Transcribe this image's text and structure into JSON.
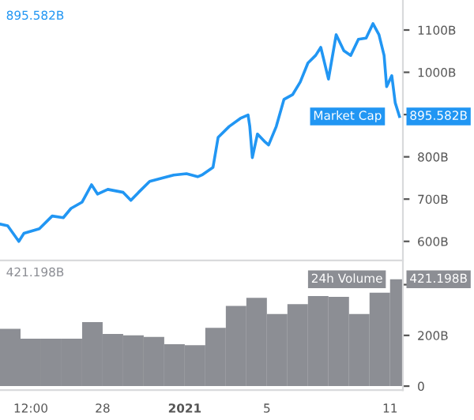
{
  "chart_data": [
    {
      "type": "line",
      "annotations": [
        "895.582B",
        {
          "text": "895.582B",
          "x": "2021-01-11T11:00",
          "y": 895.582
        }
      ],
      "xlim": [
        "2020-12-23T00:00",
        "2021-01-11T15:00"
      ],
      "ylim": [
        555,
        1171
      ],
      "yticks": [
        {
          "value": 600,
          "label": "600B"
        },
        {
          "value": 700,
          "label": "700B"
        },
        {
          "value": 800,
          "label": "800B"
        },
        {
          "value": 900,
          "label": null
        },
        {
          "value": 1000,
          "label": "1000B"
        },
        {
          "value": 1100,
          "label": "1100B"
        }
      ],
      "tick_labels": "y",
      "series": [
        {
          "name": "Market Cap",
          "color": "#2196f3",
          "x": [
            "2020-12-23T00:00",
            "2020-12-23T09:00",
            "2020-12-23T22:00",
            "2020-12-24T04:00",
            "2020-12-24T22:00",
            "2020-12-25T13:00",
            "2020-12-26T02:00",
            "2020-12-26T11:00",
            "2020-12-27T00:00",
            "2020-12-27T11:00",
            "2020-12-27T18:00",
            "2020-12-28T06:00",
            "2020-12-29T00:00",
            "2020-12-29T09:00",
            "2020-12-29T18:00",
            "2020-12-30T07:00",
            "2020-12-30T20:00",
            "2020-12-31T11:00",
            "2021-01-01T02:00",
            "2021-01-01T15:00",
            "2021-01-01T20:00",
            "2021-01-02T09:00",
            "2021-01-02T15:00",
            "2021-01-03T04:00",
            "2021-01-03T17:00",
            "2021-01-04T02:00",
            "2021-01-04T04:00",
            "2021-01-04T07:00",
            "2021-01-04T13:00",
            "2021-01-04T22:00",
            "2021-01-05T02:00",
            "2021-01-05T11:00",
            "2021-01-05T20:00",
            "2021-01-06T06:00",
            "2021-01-06T15:00",
            "2021-01-07T00:00",
            "2021-01-07T09:00",
            "2021-01-07T15:00",
            "2021-01-08T00:00",
            "2021-01-08T09:00",
            "2021-01-08T18:00",
            "2021-01-09T02:00",
            "2021-01-09T11:00",
            "2021-01-09T20:00",
            "2021-01-10T04:00",
            "2021-01-10T11:00",
            "2021-01-10T17:00",
            "2021-01-10T20:00",
            "2021-01-11T02:00",
            "2021-01-11T06:00",
            "2021-01-11T11:00"
          ],
          "values": [
            641,
            637,
            600,
            619,
            630,
            660,
            656,
            678,
            693,
            734,
            712,
            723,
            716,
            697,
            716,
            742,
            749,
            757,
            760,
            753,
            757,
            775,
            846,
            872,
            891,
            899,
            872,
            798,
            854,
            835,
            828,
            872,
            936,
            947,
            977,
            1022,
            1040,
            1059,
            984,
            1089,
            1051,
            1040,
            1078,
            1081,
            1115,
            1089,
            1040,
            966,
            992,
            928,
            895.582
          ]
        }
      ]
    },
    {
      "type": "bar",
      "annotations": [
        "421.198B",
        {
          "text": "421.198B",
          "x": "2021-01-11T12:00",
          "y": 421.198
        }
      ],
      "xlim": [
        "2020-12-23T00:00",
        "2021-01-11T15:00"
      ],
      "ylim": [
        -16,
        489
      ],
      "yticks": [
        0,
        {
          "value": 200,
          "label": "200B"
        },
        {
          "value": 400,
          "label": null
        }
      ],
      "xticks": [
        {
          "value": "2020-12-24T12:00",
          "label": "12:00"
        },
        {
          "value": "2020-12-28",
          "label": "28"
        },
        {
          "value": "2021-01-01",
          "label": "2021"
        },
        {
          "value": "2021-01-05",
          "label": "5"
        },
        {
          "value": "2021-01-11",
          "label": "11"
        }
      ],
      "series": [
        {
          "name": "24h Volume",
          "color": "#8c8e94",
          "x": [
            "2020-12-23T12:00",
            "2020-12-24T12:00",
            "2020-12-25T12:00",
            "2020-12-26T12:00",
            "2020-12-27T12:00",
            "2020-12-28T12:00",
            "2020-12-29T12:00",
            "2020-12-30T12:00",
            "2020-12-31T12:00",
            "2021-01-01T12:00",
            "2021-01-02T12:00",
            "2021-01-03T12:00",
            "2021-01-04T12:00",
            "2021-01-05T12:00",
            "2021-01-06T12:00",
            "2021-01-07T12:00",
            "2021-01-08T12:00",
            "2021-01-09T12:00",
            "2021-01-10T12:00",
            "2021-01-11T12:00"
          ],
          "values": [
            226,
            187,
            187,
            187,
            252,
            206,
            200,
            194,
            165,
            161,
            230,
            316,
            348,
            284,
            323,
            355,
            352,
            284,
            368,
            421.198
          ]
        }
      ]
    }
  ]
}
